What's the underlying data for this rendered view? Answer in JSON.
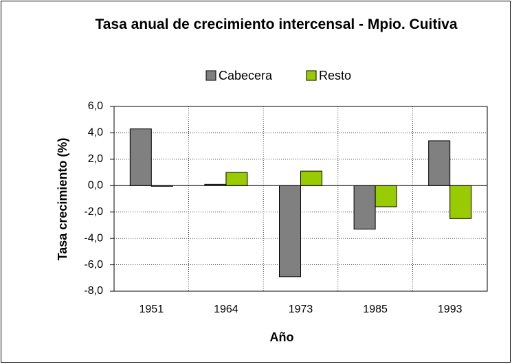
{
  "chart_data": {
    "type": "bar",
    "title": "Tasa anual de crecimiento intercensal - Mpio. Cuitiva",
    "x_label": "Año",
    "y_label": "Tasa crecimiento (%)",
    "categories": [
      "1951",
      "1964",
      "1973",
      "1985",
      "1993"
    ],
    "series": [
      {
        "name": "Cabecera",
        "color": "#808080",
        "values": [
          4.3,
          0.1,
          -6.9,
          -3.3,
          3.4
        ]
      },
      {
        "name": "Resto",
        "color": "#99cc00",
        "values": [
          -0.05,
          1.0,
          1.1,
          -1.6,
          -2.5
        ]
      }
    ],
    "ylim": [
      -8,
      6
    ],
    "yticks": [
      {
        "value": -8,
        "label": "-8,0"
      },
      {
        "value": -6,
        "label": "-6,0"
      },
      {
        "value": -4,
        "label": "-4,0"
      },
      {
        "value": -2,
        "label": "-2,0"
      },
      {
        "value": 0,
        "label": "0,0"
      },
      {
        "value": 2,
        "label": "2,0"
      },
      {
        "value": 4,
        "label": "4,0"
      },
      {
        "value": 6,
        "label": "6,0"
      }
    ],
    "grid": true,
    "legend": "top"
  }
}
